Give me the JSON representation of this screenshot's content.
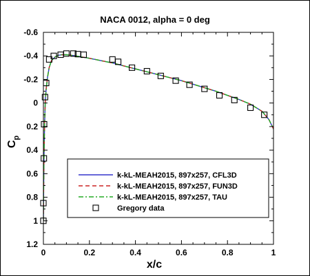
{
  "chart_data": {
    "type": "line",
    "title": "NACA 0012, alpha = 0 deg",
    "xlabel": "x/c",
    "ylabel": {
      "main": "C",
      "sub": "p"
    },
    "xlim": [
      0,
      1
    ],
    "ylim": [
      -0.6,
      1.2
    ],
    "y_inverted": true,
    "grid": false,
    "legend_position": "bottom-center",
    "x_ticks": [
      {
        "value": 0,
        "label": "0"
      },
      {
        "value": 0.2,
        "label": "0.2"
      },
      {
        "value": 0.4,
        "label": "0.4"
      },
      {
        "value": 0.6,
        "label": "0.6"
      },
      {
        "value": 0.8,
        "label": "0.8"
      },
      {
        "value": 1,
        "label": "1"
      }
    ],
    "y_ticks": [
      {
        "value": -0.6,
        "label": "-0.6"
      },
      {
        "value": -0.4,
        "label": "-0.4"
      },
      {
        "value": -0.2,
        "label": "-0.2"
      },
      {
        "value": 0,
        "label": "0"
      },
      {
        "value": 0.2,
        "label": "0.2"
      },
      {
        "value": 0.4,
        "label": "0.4"
      },
      {
        "value": 0.6,
        "label": "0.6"
      },
      {
        "value": 0.8,
        "label": "0.8"
      },
      {
        "value": 1,
        "label": "1"
      },
      {
        "value": 1.2,
        "label": "1.2"
      }
    ],
    "series": [
      {
        "name": "k-kL-MEAH2015, 897x257, CFL3D",
        "color": "#3333cc",
        "style": "solid",
        "x": [
          0,
          0.0005,
          0.001,
          0.002,
          0.003,
          0.005,
          0.008,
          0.012,
          0.018,
          0.025,
          0.035,
          0.05,
          0.065,
          0.08,
          0.1,
          0.12,
          0.14,
          0.17,
          0.2,
          0.25,
          0.3,
          0.35,
          0.4,
          0.45,
          0.5,
          0.55,
          0.6,
          0.65,
          0.7,
          0.75,
          0.8,
          0.85,
          0.9,
          0.95,
          0.98,
          1.0
        ],
        "y": [
          1.0,
          0.9,
          0.75,
          0.55,
          0.4,
          0.2,
          0.0,
          -0.12,
          -0.22,
          -0.3,
          -0.36,
          -0.39,
          -0.405,
          -0.41,
          -0.41,
          -0.405,
          -0.4,
          -0.39,
          -0.38,
          -0.36,
          -0.34,
          -0.315,
          -0.29,
          -0.265,
          -0.24,
          -0.215,
          -0.19,
          -0.16,
          -0.13,
          -0.1,
          -0.065,
          -0.03,
          0.01,
          0.07,
          0.14,
          0.22
        ]
      },
      {
        "name": "k-kL-MEAH2015, 897x257, FUN3D",
        "color": "#cc2222",
        "style": "dashed",
        "x": [
          0,
          0.0005,
          0.001,
          0.002,
          0.003,
          0.005,
          0.008,
          0.012,
          0.018,
          0.025,
          0.035,
          0.05,
          0.065,
          0.08,
          0.1,
          0.12,
          0.14,
          0.17,
          0.2,
          0.25,
          0.3,
          0.35,
          0.4,
          0.45,
          0.5,
          0.55,
          0.6,
          0.65,
          0.7,
          0.75,
          0.8,
          0.85,
          0.9,
          0.95,
          0.98,
          1.0
        ],
        "y": [
          1.0,
          0.9,
          0.75,
          0.55,
          0.4,
          0.2,
          0.0,
          -0.12,
          -0.22,
          -0.3,
          -0.36,
          -0.39,
          -0.405,
          -0.41,
          -0.41,
          -0.405,
          -0.4,
          -0.39,
          -0.38,
          -0.36,
          -0.34,
          -0.315,
          -0.29,
          -0.265,
          -0.24,
          -0.215,
          -0.19,
          -0.16,
          -0.13,
          -0.1,
          -0.065,
          -0.03,
          0.01,
          0.07,
          0.14,
          0.22
        ]
      },
      {
        "name": "k-kL-MEAH2015, 897x257, TAU",
        "color": "#22aa22",
        "style": "dashdot",
        "x": [
          0,
          0.0005,
          0.001,
          0.002,
          0.003,
          0.005,
          0.008,
          0.012,
          0.018,
          0.025,
          0.035,
          0.05,
          0.065,
          0.08,
          0.1,
          0.12,
          0.14,
          0.17,
          0.2,
          0.25,
          0.3,
          0.35,
          0.4,
          0.45,
          0.5,
          0.55,
          0.6,
          0.65,
          0.7,
          0.75,
          0.8,
          0.85,
          0.9,
          0.95,
          0.98,
          1.0
        ],
        "y": [
          1.0,
          0.9,
          0.75,
          0.55,
          0.4,
          0.2,
          0.0,
          -0.12,
          -0.22,
          -0.3,
          -0.36,
          -0.39,
          -0.405,
          -0.41,
          -0.41,
          -0.405,
          -0.4,
          -0.39,
          -0.38,
          -0.36,
          -0.34,
          -0.315,
          -0.29,
          -0.265,
          -0.24,
          -0.215,
          -0.19,
          -0.16,
          -0.13,
          -0.1,
          -0.065,
          -0.03,
          0.01,
          0.07,
          0.14,
          0.22
        ]
      }
    ],
    "markers": {
      "name": "Gregory data",
      "symbol": "square",
      "x": [
        0.0,
        0.0,
        0.002,
        0.003,
        0.007,
        0.012,
        0.025,
        0.045,
        0.075,
        0.1,
        0.13,
        0.15,
        0.175,
        0.3,
        0.325,
        0.385,
        0.45,
        0.51,
        0.575,
        0.635,
        0.7,
        0.765,
        0.83,
        0.9,
        0.96
      ],
      "y": [
        1.0,
        0.85,
        0.47,
        0.18,
        -0.05,
        -0.17,
        -0.37,
        -0.4,
        -0.41,
        -0.42,
        -0.42,
        -0.415,
        -0.41,
        -0.37,
        -0.35,
        -0.3,
        -0.27,
        -0.23,
        -0.19,
        -0.155,
        -0.12,
        -0.065,
        -0.025,
        0.04,
        0.1
      ]
    }
  }
}
